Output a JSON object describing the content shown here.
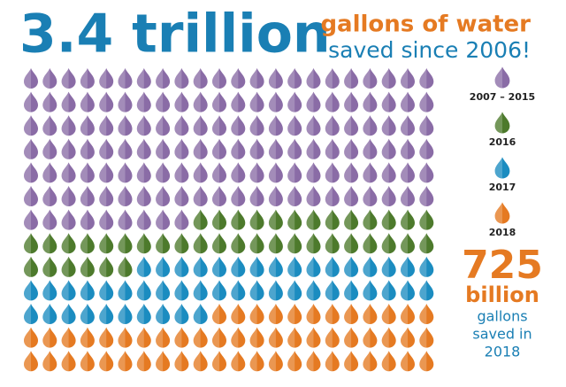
{
  "chart_data": {
    "type": "pictogram",
    "title": "3.4 trillion",
    "subtitle": [
      "gallons of water",
      "saved since 2006!"
    ],
    "series": [
      {
        "name": "2007 – 2015",
        "color": "#8a6ca6",
        "values": [
          141
        ]
      },
      {
        "name": "2016",
        "color": "#4d7a2c",
        "values": [
          41
        ]
      },
      {
        "name": "2017",
        "color": "#1b8cc0",
        "values": [
          48
        ]
      },
      {
        "name": "2018",
        "color": "#e57a22",
        "values": [
          56
        ]
      }
    ],
    "callout": {
      "number": "725",
      "unit": "billion",
      "lines": [
        "gallons",
        "saved in",
        "2018"
      ]
    }
  }
}
